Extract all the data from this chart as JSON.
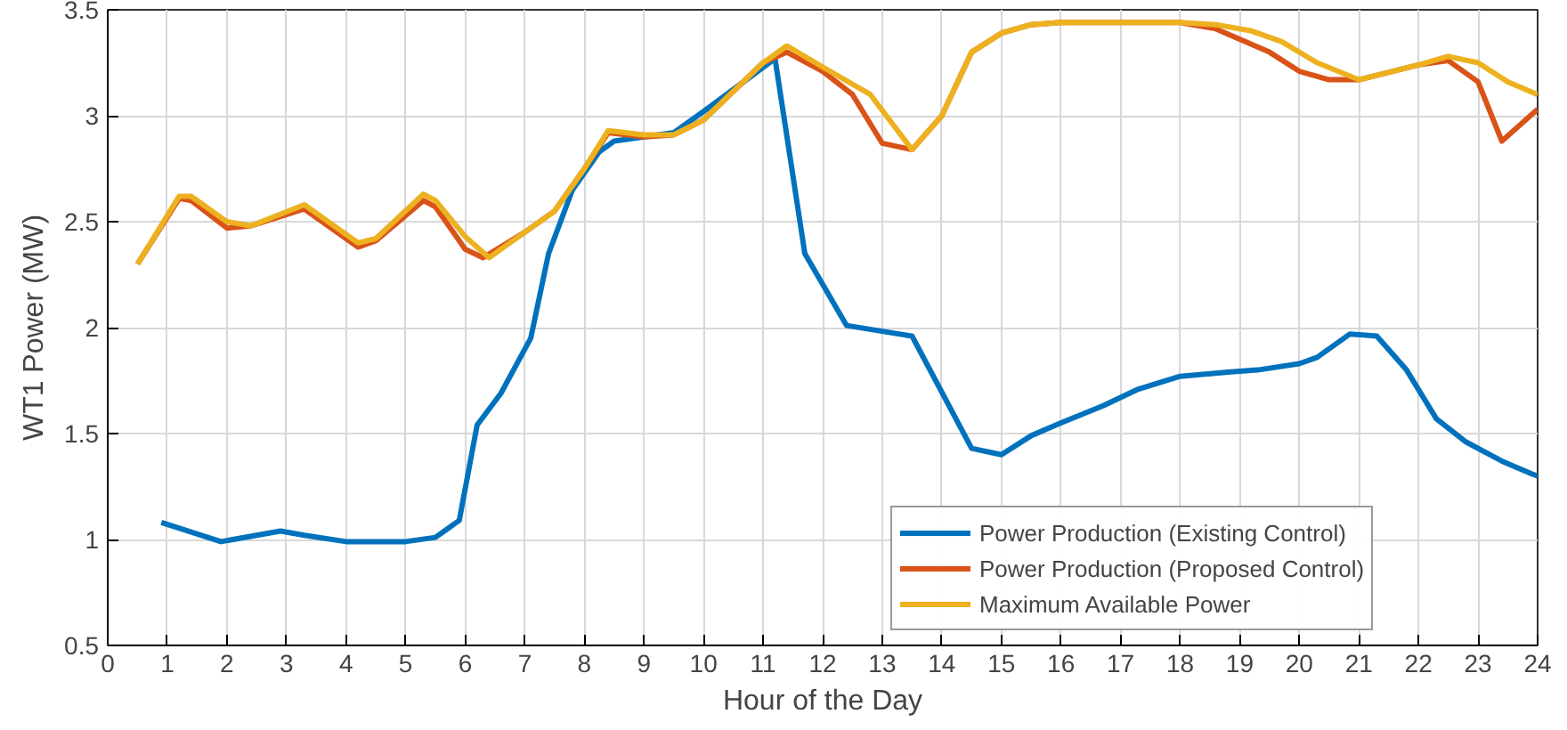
{
  "chart_data": {
    "type": "line",
    "xlabel": "Hour of the Day",
    "ylabel": "WT1 Power (MW)",
    "xlim": [
      0,
      24
    ],
    "ylim": [
      0.5,
      3.5
    ],
    "xticks": [
      0,
      1,
      2,
      3,
      4,
      5,
      6,
      7,
      8,
      9,
      10,
      11,
      12,
      13,
      14,
      15,
      16,
      17,
      18,
      19,
      20,
      21,
      22,
      23,
      24
    ],
    "yticks": [
      0.5,
      1,
      1.5,
      2,
      2.5,
      3,
      3.5
    ],
    "grid": true,
    "legend": "bottom",
    "line_style": "solid",
    "series": [
      {
        "name": "Power Production (Existing Control)",
        "color": "#0072bd",
        "x": [
          0.9,
          1.9,
          2.9,
          3.3,
          4,
          5,
          5.5,
          5.9,
          6.2,
          6.6,
          7.1,
          7.4,
          7.8,
          8.25,
          8.5,
          9,
          9.5,
          10,
          11.2,
          11.7,
          12.4,
          13.5,
          14.5,
          15,
          15.5,
          16,
          16.7,
          17.3,
          18,
          18.8,
          19.3,
          20,
          20.3,
          20.85,
          21.3,
          21.8,
          22.3,
          22.8,
          23.4,
          23.9,
          24
        ],
        "values": [
          1.08,
          0.99,
          1.04,
          1.02,
          0.99,
          0.99,
          1.01,
          1.09,
          1.54,
          1.69,
          1.95,
          2.35,
          2.65,
          2.83,
          2.88,
          2.9,
          2.92,
          3.02,
          3.27,
          2.35,
          2.01,
          1.96,
          1.43,
          1.4,
          1.49,
          1.55,
          1.63,
          1.71,
          1.77,
          1.79,
          1.8,
          1.83,
          1.86,
          1.97,
          1.96,
          1.8,
          1.57,
          1.46,
          1.37,
          1.31,
          1.3
        ]
      },
      {
        "name": "Power Production (Proposed Control)",
        "color": "#d95319",
        "x": [
          0.5,
          1.2,
          1.4,
          2,
          2.4,
          3.3,
          4.2,
          4.5,
          5.3,
          5.5,
          6,
          6.3,
          7,
          7.5,
          8,
          8.4,
          9,
          9.5,
          10,
          11,
          11.4,
          12,
          12.5,
          13,
          13.5,
          14,
          14.5,
          15,
          15.5,
          16,
          17,
          18,
          18.6,
          19.5,
          20,
          20.5,
          21,
          22,
          22.5,
          23,
          23.4,
          24
        ],
        "values": [
          2.3,
          2.61,
          2.6,
          2.47,
          2.48,
          2.56,
          2.38,
          2.41,
          2.6,
          2.57,
          2.37,
          2.33,
          2.45,
          2.55,
          2.75,
          2.92,
          2.9,
          2.91,
          2.98,
          3.25,
          3.3,
          3.21,
          3.1,
          2.87,
          2.84,
          3.0,
          3.3,
          3.39,
          3.43,
          3.44,
          3.44,
          3.44,
          3.41,
          3.3,
          3.21,
          3.17,
          3.17,
          3.24,
          3.26,
          3.16,
          2.88,
          3.03
        ]
      },
      {
        "name": "Maximum Available Power",
        "color": "#edb120",
        "x": [
          0.5,
          1.2,
          1.4,
          2,
          2.4,
          3.3,
          4.2,
          4.5,
          5.3,
          5.5,
          6,
          6.4,
          7,
          7.5,
          8,
          8.4,
          9,
          9.5,
          10,
          11,
          11.4,
          12,
          12.8,
          13.5,
          14,
          14.5,
          15,
          15.5,
          16,
          17,
          18,
          18.6,
          19.2,
          19.7,
          20.3,
          21,
          22,
          22.5,
          23,
          23.5,
          24
        ],
        "values": [
          2.3,
          2.62,
          2.62,
          2.5,
          2.48,
          2.58,
          2.4,
          2.42,
          2.63,
          2.6,
          2.43,
          2.33,
          2.45,
          2.55,
          2.75,
          2.93,
          2.91,
          2.91,
          2.98,
          3.25,
          3.33,
          3.23,
          3.1,
          2.84,
          3.0,
          3.3,
          3.39,
          3.43,
          3.44,
          3.44,
          3.44,
          3.43,
          3.4,
          3.35,
          3.25,
          3.17,
          3.24,
          3.28,
          3.25,
          3.16,
          3.1
        ]
      }
    ]
  }
}
